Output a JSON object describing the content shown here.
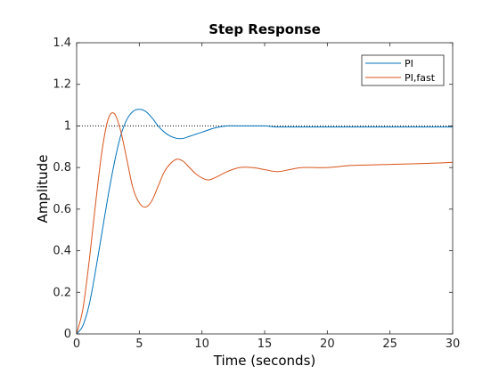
{
  "chart_data": {
    "type": "line",
    "title": "Step Response",
    "xlabel": "Time (seconds)",
    "ylabel": "Amplitude",
    "xlim": [
      0,
      30
    ],
    "ylim": [
      0,
      1.4
    ],
    "x_ticks": [
      "0",
      "5",
      "10",
      "15",
      "20",
      "25",
      "30"
    ],
    "y_ticks": [
      "0",
      "0.2",
      "0.4",
      "0.6",
      "0.8",
      "1",
      "1.2",
      "1.4"
    ],
    "grid": false,
    "legend_position": "top-right",
    "reference_line": {
      "y": 1,
      "style": "dotted"
    },
    "series": [
      {
        "name": "PI",
        "color": "#0072bd",
        "x": [
          0,
          0.5,
          1,
          1.5,
          2,
          2.5,
          3,
          3.5,
          4,
          4.5,
          5,
          5.5,
          6,
          6.5,
          7,
          7.5,
          8,
          8.5,
          9,
          9.5,
          10,
          11,
          12,
          13,
          14,
          15,
          16,
          18,
          20,
          22,
          25,
          28,
          30
        ],
        "y": [
          0,
          0.04,
          0.14,
          0.3,
          0.48,
          0.66,
          0.82,
          0.95,
          1.03,
          1.07,
          1.08,
          1.07,
          1.04,
          1.0,
          0.97,
          0.95,
          0.94,
          0.94,
          0.95,
          0.96,
          0.97,
          0.99,
          1.0,
          1.0,
          1.0,
          1.0,
          0.995,
          0.995,
          0.995,
          0.995,
          0.995,
          0.995,
          0.995
        ]
      },
      {
        "name": "PI,fast",
        "color": "#d95319",
        "x": [
          0,
          0.5,
          1,
          1.5,
          2,
          2.5,
          3,
          3.5,
          4,
          4.5,
          5,
          5.5,
          6,
          6.5,
          7,
          7.5,
          8,
          8.5,
          9,
          9.5,
          10,
          10.5,
          11,
          12,
          13,
          14,
          15,
          16,
          17,
          18,
          20,
          22,
          25,
          28,
          30
        ],
        "y": [
          0,
          0.12,
          0.35,
          0.62,
          0.87,
          1.03,
          1.06,
          0.98,
          0.84,
          0.7,
          0.63,
          0.61,
          0.64,
          0.71,
          0.78,
          0.82,
          0.84,
          0.83,
          0.8,
          0.77,
          0.75,
          0.74,
          0.75,
          0.78,
          0.8,
          0.8,
          0.79,
          0.78,
          0.79,
          0.8,
          0.8,
          0.81,
          0.815,
          0.82,
          0.825
        ]
      }
    ]
  }
}
